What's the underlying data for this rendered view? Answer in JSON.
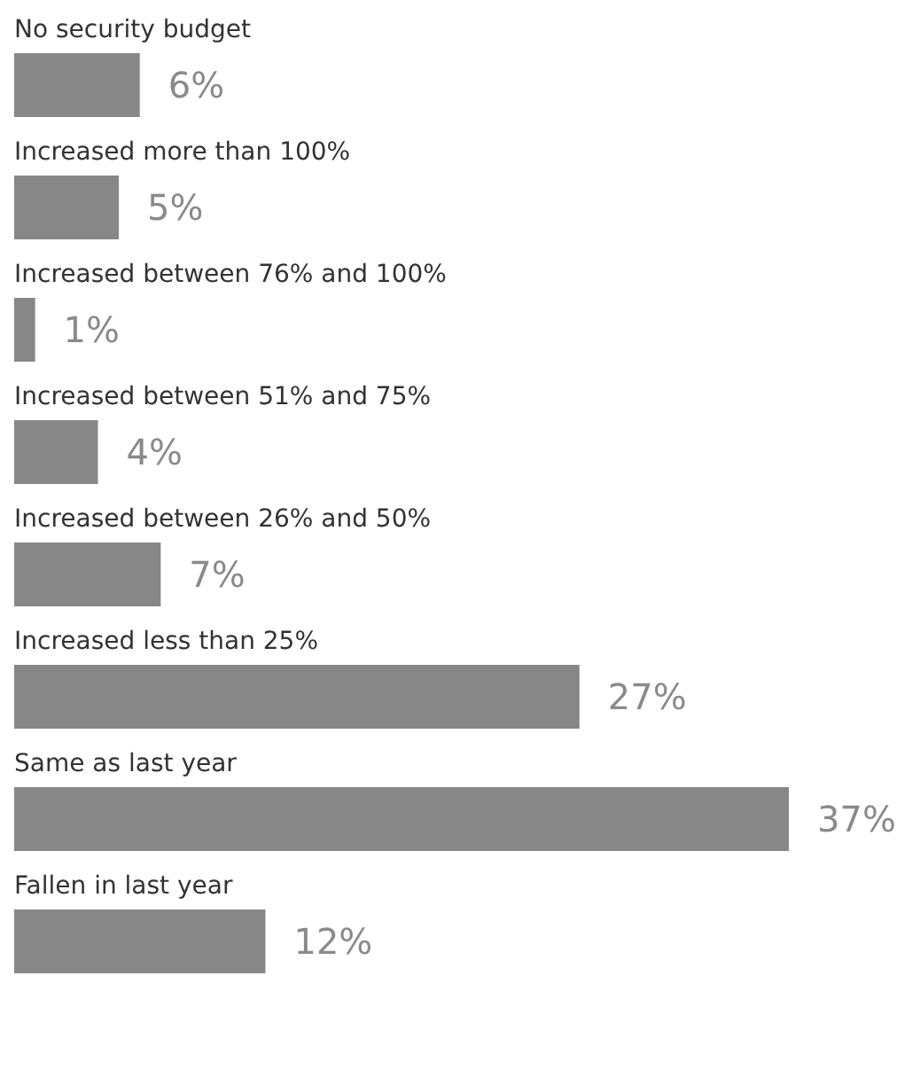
{
  "chart_data": {
    "type": "bar",
    "orientation": "horizontal",
    "categories": [
      "No security budget",
      "Increased more than 100%",
      "Increased between 76% and 100%",
      "Increased between 51% and 75%",
      "Increased between 26% and 50%",
      "Increased less than 25%",
      "Same as last year",
      "Fallen in last year"
    ],
    "values": [
      6,
      5,
      1,
      4,
      7,
      27,
      37,
      12
    ],
    "value_labels": [
      "6%",
      "5%",
      "1%",
      "4%",
      "7%",
      "27%",
      "37%",
      "12%"
    ],
    "color": "#878787"
  }
}
